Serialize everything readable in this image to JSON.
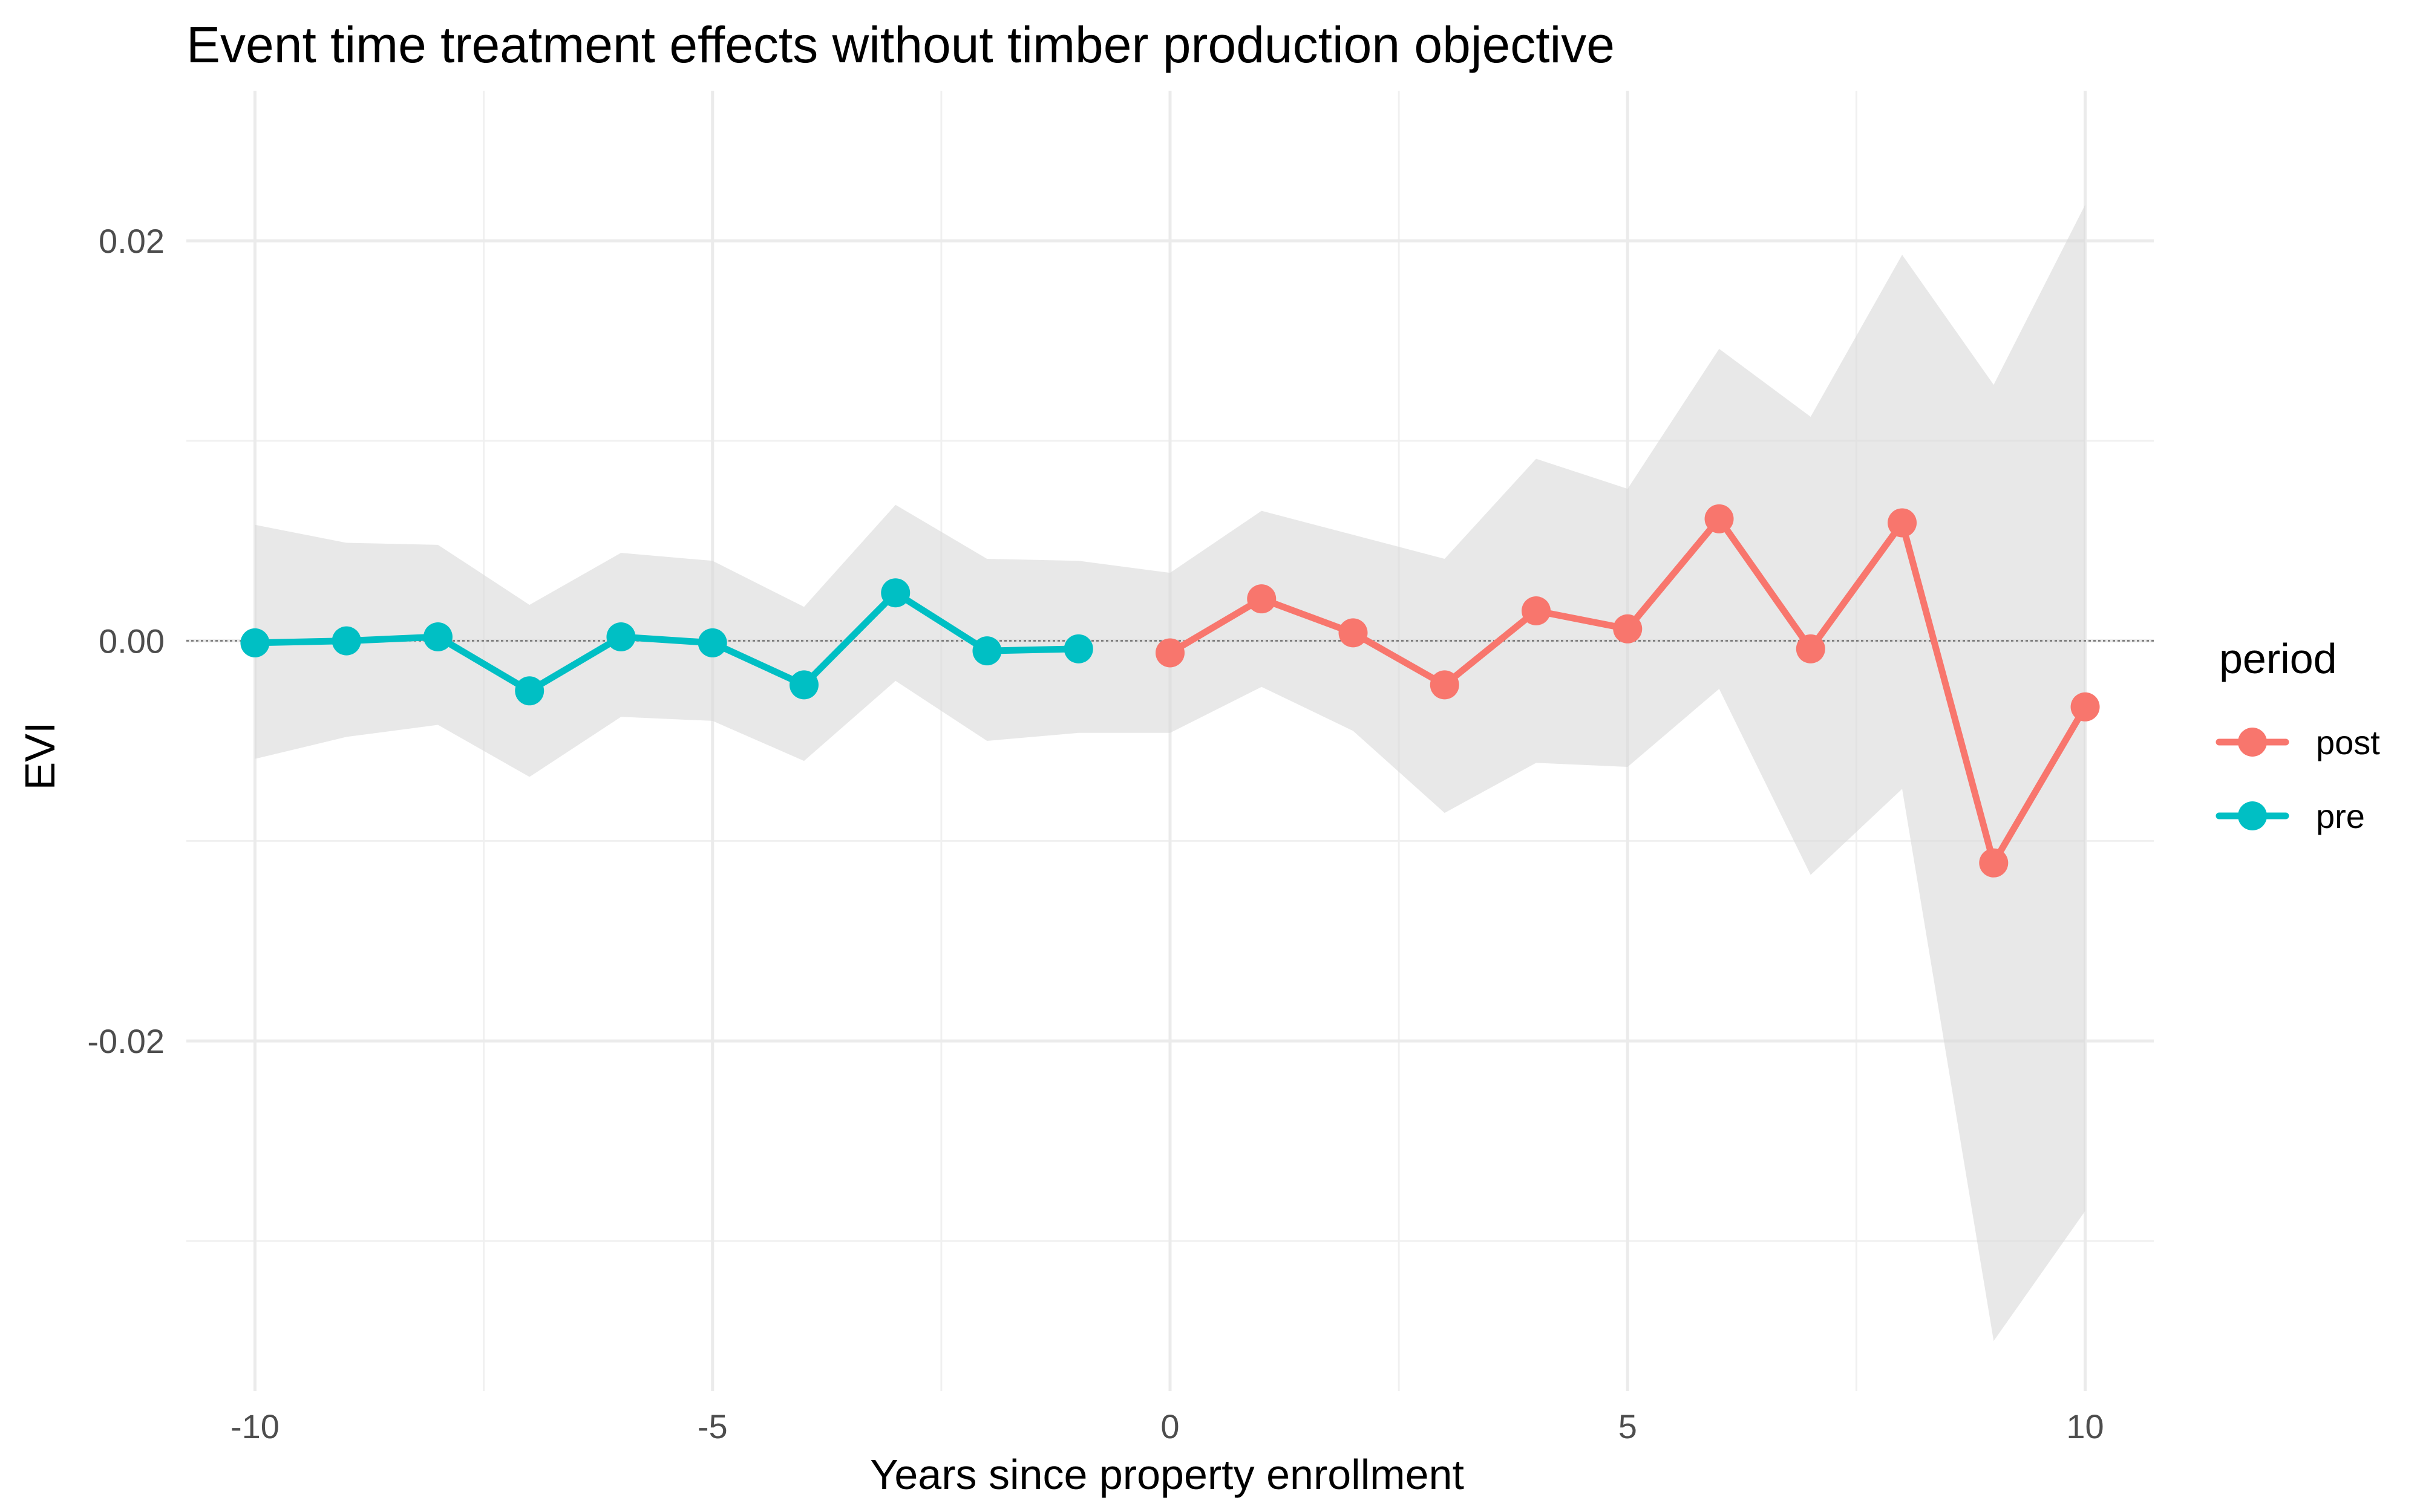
{
  "chart_data": {
    "type": "line",
    "title": "Event time treatment effects without timber production objective",
    "xlabel": "Years since property enrollment",
    "ylabel": "EVI",
    "xlim": [
      -10.75,
      10.75
    ],
    "ylim": [
      -0.0375,
      0.0275
    ],
    "x_ticks": [
      -10,
      -5,
      0,
      5,
      10
    ],
    "x_tick_labels": [
      "-10",
      "-5",
      "0",
      "5",
      "10"
    ],
    "y_ticks": [
      0.02,
      0.0,
      -0.02
    ],
    "y_tick_labels": [
      "0.02",
      "0.00",
      "-0.02"
    ],
    "grid": true,
    "reference_line_y": 0,
    "legend": {
      "title": "period",
      "position": "right",
      "entries": [
        {
          "label": "post",
          "color": "#F8766D"
        },
        {
          "label": "pre",
          "color": "#00BFC4"
        }
      ]
    },
    "series": [
      {
        "name": "pre",
        "color": "#00BFC4",
        "x": [
          -10,
          -9,
          -8,
          -7,
          -6,
          -5,
          -4,
          -3,
          -2,
          -1
        ],
        "y": [
          -0.0001,
          0.0,
          0.0002,
          -0.0025,
          0.0002,
          -0.0001,
          -0.0022,
          0.0024,
          -0.0005,
          -0.0004
        ],
        "lower": [
          -0.0059,
          -0.0048,
          -0.0042,
          -0.0068,
          -0.0038,
          -0.004,
          -0.006,
          -0.002,
          -0.005,
          -0.0046
        ],
        "upper": [
          0.0058,
          0.0049,
          0.0048,
          0.0018,
          0.0044,
          0.004,
          0.0017,
          0.0068,
          0.0041,
          0.004
        ]
      },
      {
        "name": "post",
        "color": "#F8766D",
        "x": [
          0,
          1,
          2,
          3,
          4,
          5,
          6,
          7,
          8,
          9,
          10
        ],
        "y": [
          -0.0006,
          0.0021,
          0.0004,
          -0.0022,
          0.0015,
          0.0006,
          0.0061,
          -0.0004,
          0.0059,
          -0.0111,
          -0.0033
        ],
        "lower": [
          -0.0046,
          -0.0023,
          -0.0045,
          -0.0086,
          -0.0061,
          -0.0063,
          -0.0024,
          -0.0117,
          -0.0074,
          -0.035,
          -0.0285
        ],
        "upper": [
          0.0034,
          0.0065,
          0.0053,
          0.0041,
          0.0091,
          0.0076,
          0.0146,
          0.0112,
          0.0193,
          0.0128,
          0.0218
        ]
      }
    ]
  }
}
